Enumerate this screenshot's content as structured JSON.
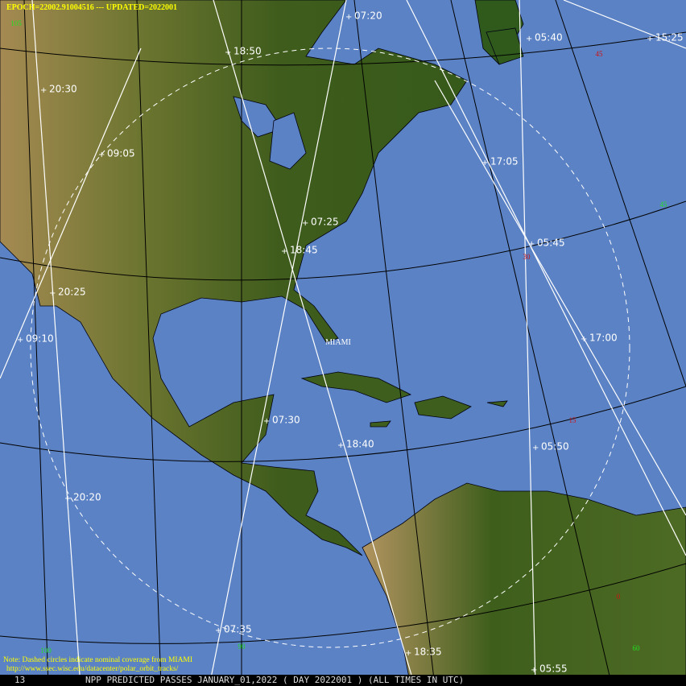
{
  "header": {
    "epoch": "EPOCH=22002.91004516 --- UPDATED=2022001"
  },
  "city": "MIAMI",
  "passes": [
    "07:20",
    "05:40",
    "15:25",
    "18:50",
    "20:30",
    "09:05",
    "17:05",
    "07:25",
    "05:45",
    "18:45",
    "20:25",
    "09:10",
    "17:00",
    "07:30",
    "18:40",
    "05:50",
    "20:20",
    "07:35",
    "18:35",
    "05:55"
  ],
  "grid_labels": {
    "latitude": [
      "45",
      "30",
      "15",
      "0"
    ],
    "longitude": [
      "105",
      "45",
      "100",
      "90",
      "60"
    ]
  },
  "note": "Note: Dashed circles indicate nominal coverage from MIAMI",
  "url": "http://www.ssec.wisc.edu/datacenter/polar_orbit_tracks/",
  "footer": {
    "left": "13",
    "title": "NPP PREDICTED PASSES JANUARY_01,2022 ( DAY 2022001 ) (ALL TIMES IN UTC)"
  }
}
